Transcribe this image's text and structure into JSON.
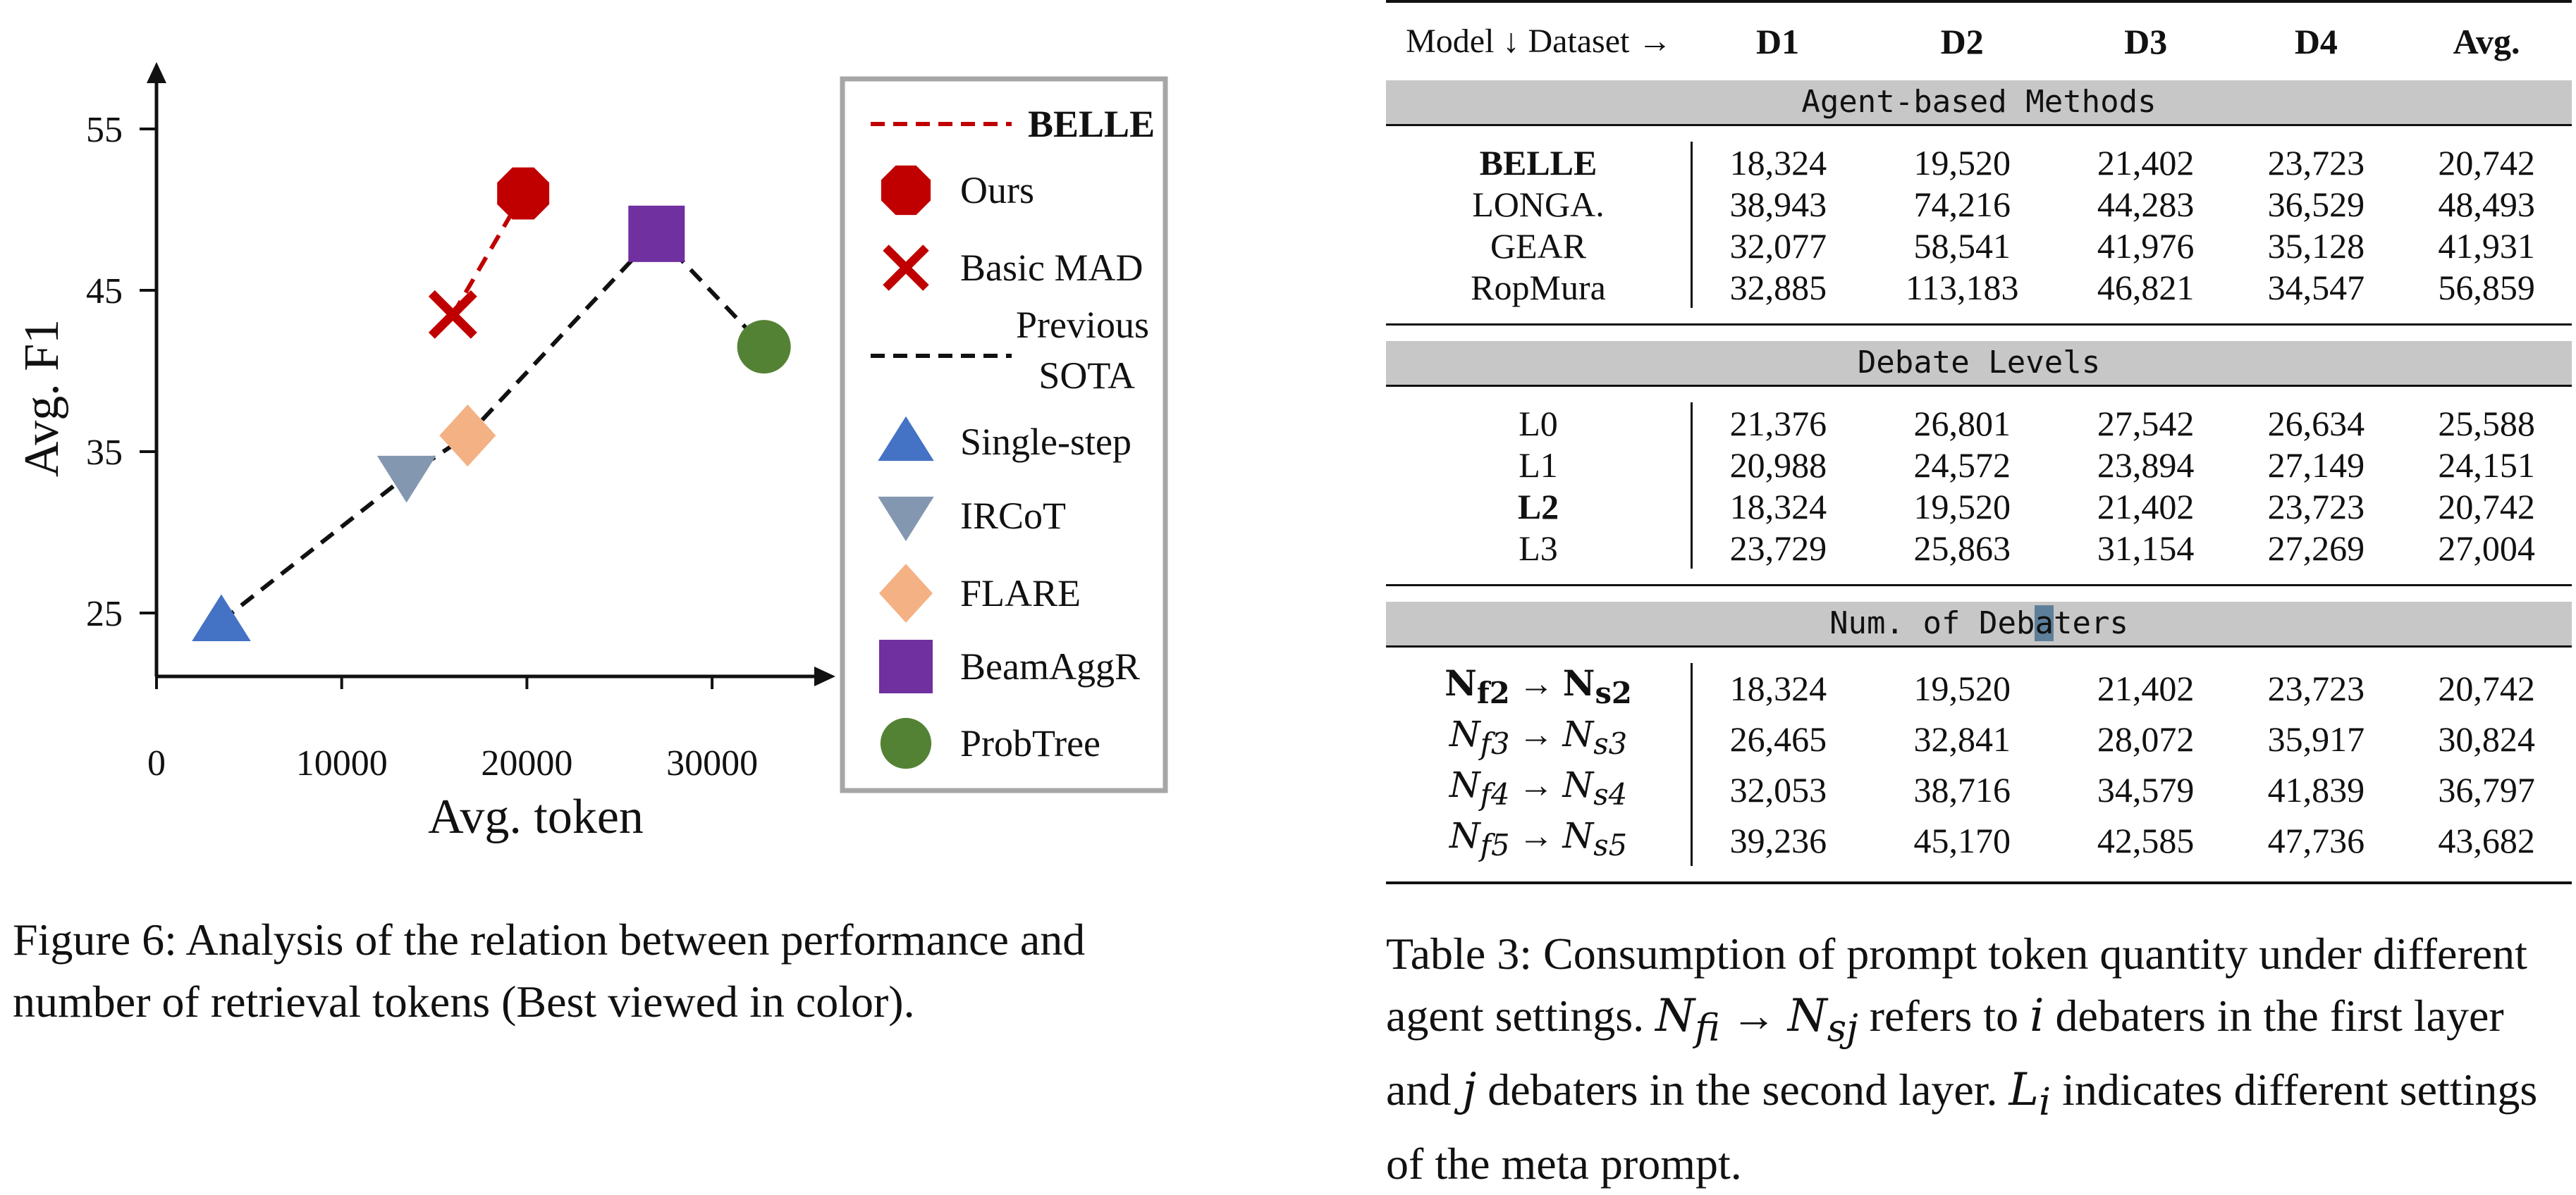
{
  "figure": {
    "caption": "Figure 6: Analysis of the relation between performance and number of retrieval tokens (Best viewed in color).",
    "chart_data": {
      "type": "scatter",
      "xlabel": "Avg. token",
      "ylabel": "Avg. F1",
      "xlim": [
        0,
        34000
      ],
      "ylim": [
        20,
        58
      ],
      "x_ticks": [
        "0",
        "10000",
        "20000",
        "30000"
      ],
      "x_tick_values": [
        0,
        10000,
        20000,
        30000
      ],
      "y_ticks": [
        "25",
        "35",
        "45",
        "55"
      ],
      "y_tick_values": [
        25,
        35,
        45,
        55
      ],
      "grid": false,
      "legend_position": "right",
      "points": [
        {
          "name": "Ours",
          "x": 19800,
          "y": 51,
          "marker": "octagon",
          "color": "#c00000"
        },
        {
          "name": "Basic MAD",
          "x": 16000,
          "y": 43.5,
          "marker": "x",
          "color": "#c00000"
        },
        {
          "name": "Single-step",
          "x": 3500,
          "y": 24.5,
          "marker": "triangle-up",
          "color": "#4472c4"
        },
        {
          "name": "IRCoT",
          "x": 13500,
          "y": 33.5,
          "marker": "triangle-down",
          "color": "#8497b0"
        },
        {
          "name": "FLARE",
          "x": 16800,
          "y": 36,
          "marker": "diamond",
          "color": "#f4b183"
        },
        {
          "name": "BeamAggR",
          "x": 27000,
          "y": 48.5,
          "marker": "square",
          "color": "#7030a0"
        },
        {
          "name": "ProbTree",
          "x": 32800,
          "y": 41.5,
          "marker": "circle",
          "color": "#548235"
        }
      ],
      "lines": [
        {
          "name": "BELLE",
          "style": "dashed",
          "color": "#c00000",
          "points": [
            [
              16000,
              43.5
            ],
            [
              19800,
              51
            ]
          ]
        },
        {
          "name": "Previous SOTA",
          "style": "dashed",
          "color": "#111111",
          "points": [
            [
              3500,
              24.5
            ],
            [
              13500,
              33.5
            ],
            [
              16800,
              36
            ],
            [
              27000,
              48.5
            ],
            [
              32800,
              41.5
            ]
          ]
        }
      ],
      "legend": [
        {
          "label": "BELLE",
          "kind": "line",
          "color": "#c00000",
          "bold": true
        },
        {
          "label": "Ours",
          "kind": "octagon",
          "color": "#c00000"
        },
        {
          "label": "Basic MAD",
          "kind": "x",
          "color": "#c00000"
        },
        {
          "label": "Previous SOTA",
          "kind": "line",
          "color": "#111111",
          "lines": [
            "Previous",
            "SOTA"
          ]
        },
        {
          "label": "Single-step",
          "kind": "triangle-up",
          "color": "#4472c4"
        },
        {
          "label": "IRCoT",
          "kind": "triangle-down",
          "color": "#8497b0"
        },
        {
          "label": "FLARE",
          "kind": "diamond",
          "color": "#f4b183"
        },
        {
          "label": "BeamAggR",
          "kind": "square",
          "color": "#7030a0"
        },
        {
          "label": "ProbTree",
          "kind": "circle",
          "color": "#548235"
        }
      ]
    }
  },
  "table": {
    "header": {
      "first": "Model ↓ Dataset →",
      "cols": [
        "D1",
        "D2",
        "D3",
        "D4",
        "Avg."
      ]
    },
    "sections": [
      {
        "title": "Agent-based Methods",
        "rows": [
          {
            "name": "BELLE",
            "bold": true,
            "values": [
              "18,324",
              "19,520",
              "21,402",
              "23,723",
              "20,742"
            ]
          },
          {
            "name": "LONGA.",
            "values": [
              "38,943",
              "74,216",
              "44,283",
              "36,529",
              "48,493"
            ]
          },
          {
            "name": "GEAR",
            "values": [
              "32,077",
              "58,541",
              "41,976",
              "35,128",
              "41,931"
            ]
          },
          {
            "name": "RopMura",
            "values": [
              "32,885",
              "113,183",
              "46,821",
              "34,547",
              "56,859"
            ]
          }
        ]
      },
      {
        "title": "Debate Levels",
        "rows": [
          {
            "name": "L0",
            "values": [
              "21,376",
              "26,801",
              "27,542",
              "26,634",
              "25,588"
            ]
          },
          {
            "name": "L1",
            "values": [
              "20,988",
              "24,572",
              "23,894",
              "27,149",
              "24,151"
            ]
          },
          {
            "name": "L2",
            "bold": true,
            "values": [
              "18,324",
              "19,520",
              "21,402",
              "23,723",
              "20,742"
            ]
          },
          {
            "name": "L3",
            "values": [
              "23,729",
              "25,863",
              "31,154",
              "27,269",
              "27,004"
            ]
          }
        ]
      },
      {
        "title": "Num. of Debaters",
        "title_parts": [
          "Num. of Deb",
          "a",
          "ters"
        ],
        "rows": [
          {
            "name": "Nf2 → Ns2",
            "math": {
              "a": "N",
              "as": "f2",
              "b": "N",
              "bs": "s2"
            },
            "bold": true,
            "values": [
              "18,324",
              "19,520",
              "21,402",
              "23,723",
              "20,742"
            ]
          },
          {
            "name": "Nf3 → Ns3",
            "math": {
              "a": "N",
              "as": "f3",
              "b": "N",
              "bs": "s3"
            },
            "values": [
              "26,465",
              "32,841",
              "28,072",
              "35,917",
              "30,824"
            ]
          },
          {
            "name": "Nf4 → Ns4",
            "math": {
              "a": "N",
              "as": "f4",
              "b": "N",
              "bs": "s4"
            },
            "values": [
              "32,053",
              "38,716",
              "34,579",
              "41,839",
              "36,797"
            ]
          },
          {
            "name": "Nf5 → Ns5",
            "math": {
              "a": "N",
              "as": "f5",
              "b": "N",
              "bs": "s5"
            },
            "values": [
              "39,236",
              "45,170",
              "42,585",
              "47,736",
              "43,682"
            ]
          }
        ]
      }
    ],
    "caption": {
      "p1": "Table 3: Consumption of prompt token quantity under different agent settings. ",
      "m1": "N",
      "m1s": "fi",
      "arrow": " → ",
      "m2": "N",
      "m2s": "sj",
      "p2": " refers to ",
      "m3": "i",
      "p3": " debaters in the first layer and ",
      "m4": "j",
      "p4": " debaters in the second layer. ",
      "m5": "L",
      "m5s": "i",
      "p5": " indicates different settings of the meta prompt."
    }
  }
}
